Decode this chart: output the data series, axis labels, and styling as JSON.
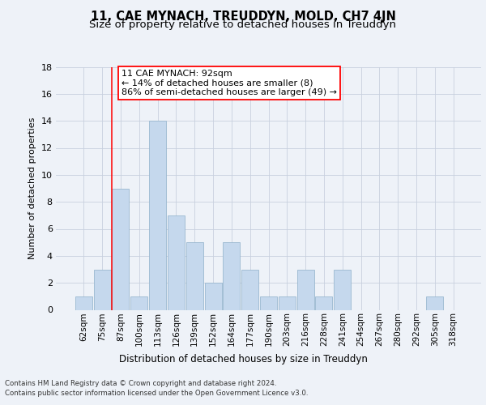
{
  "title": "11, CAE MYNACH, TREUDDYN, MOLD, CH7 4JN",
  "subtitle": "Size of property relative to detached houses in Treuddyn",
  "xlabel": "Distribution of detached houses by size in Treuddyn",
  "ylabel": "Number of detached properties",
  "footer_line1": "Contains HM Land Registry data © Crown copyright and database right 2024.",
  "footer_line2": "Contains public sector information licensed under the Open Government Licence v3.0.",
  "bin_labels": [
    "62sqm",
    "75sqm",
    "87sqm",
    "100sqm",
    "113sqm",
    "126sqm",
    "139sqm",
    "152sqm",
    "164sqm",
    "177sqm",
    "190sqm",
    "203sqm",
    "216sqm",
    "228sqm",
    "241sqm",
    "254sqm",
    "267sqm",
    "280sqm",
    "292sqm",
    "305sqm",
    "318sqm"
  ],
  "bar_values": [
    1,
    3,
    9,
    1,
    14,
    7,
    5,
    2,
    5,
    3,
    1,
    1,
    3,
    1,
    3,
    0,
    0,
    0,
    0,
    1,
    0
  ],
  "bar_color": "#c5d8ed",
  "bar_edge_color": "#9ab8d0",
  "annotation_line1": "11 CAE MYNACH: 92sqm",
  "annotation_line2": "← 14% of detached houses are smaller (8)",
  "annotation_line3": "86% of semi-detached houses are larger (49) →",
  "redline_bar_index": 2,
  "ylim": [
    0,
    18
  ],
  "yticks": [
    0,
    2,
    4,
    6,
    8,
    10,
    12,
    14,
    16,
    18
  ],
  "background_color": "#eef2f8",
  "plot_bg_color": "#eef2f8",
  "grid_color": "#c8d0de",
  "title_fontsize": 10.5,
  "subtitle_fontsize": 9.5,
  "bar_fontsize": 7.5,
  "ylabel_fontsize": 8,
  "xlabel_fontsize": 8.5,
  "footer_fontsize": 6.2,
  "annotation_fontsize": 8
}
